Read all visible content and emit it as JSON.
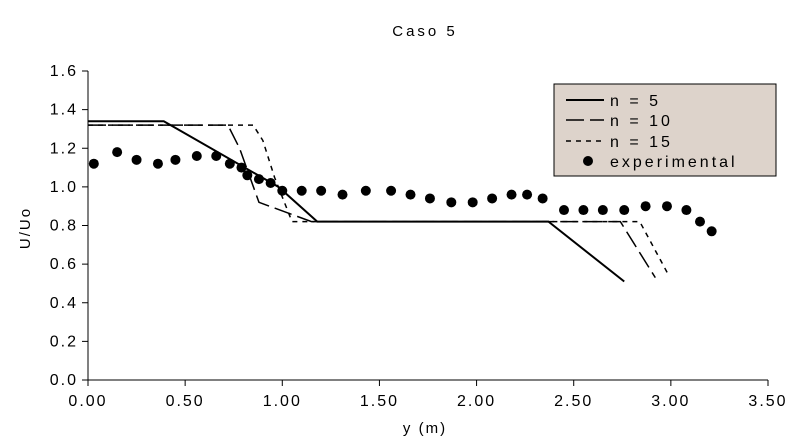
{
  "chart_data": {
    "type": "line",
    "title": "Caso 5",
    "xlabel": "y (m)",
    "ylabel": "U/Uo",
    "xlim": [
      0,
      3.5
    ],
    "ylim": [
      0,
      1.6
    ],
    "xticks": [
      "0.00",
      "0.50",
      "1.00",
      "1.50",
      "2.00",
      "2.50",
      "3.00",
      "3.50"
    ],
    "yticks": [
      "0.0",
      "0.2",
      "0.4",
      "0.6",
      "0.8",
      "1.0",
      "1.2",
      "1.4",
      "1.6"
    ],
    "grid": false,
    "legend_position": "top-right",
    "series": [
      {
        "name": "n = 5",
        "style": "solid",
        "x": [
          0.0,
          0.39,
          0.98,
          1.18,
          2.37,
          2.76
        ],
        "y": [
          1.34,
          1.34,
          1.0,
          0.82,
          0.82,
          0.51
        ]
      },
      {
        "name": "n = 10",
        "style": "long-dash",
        "x": [
          0.0,
          0.72,
          0.78,
          0.88,
          1.15,
          2.74,
          2.92
        ],
        "y": [
          1.32,
          1.32,
          1.2,
          0.92,
          0.82,
          0.82,
          0.53
        ]
      },
      {
        "name": "n = 15",
        "style": "short-dash",
        "x": [
          0.0,
          0.85,
          0.9,
          0.96,
          1.05,
          1.2,
          2.84,
          2.99
        ],
        "y": [
          1.32,
          1.32,
          1.24,
          1.05,
          0.82,
          0.82,
          0.82,
          0.54
        ]
      },
      {
        "name": "experimental",
        "style": "markers",
        "x": [
          0.03,
          0.15,
          0.25,
          0.36,
          0.45,
          0.56,
          0.66,
          0.73,
          0.79,
          0.82,
          0.88,
          0.94,
          1.0,
          1.1,
          1.2,
          1.31,
          1.43,
          1.56,
          1.66,
          1.76,
          1.87,
          1.98,
          2.08,
          2.18,
          2.26,
          2.34,
          2.45,
          2.55,
          2.65,
          2.76,
          2.87,
          2.98,
          3.08,
          3.15,
          3.21
        ],
        "y": [
          1.12,
          1.18,
          1.14,
          1.12,
          1.14,
          1.16,
          1.16,
          1.12,
          1.1,
          1.06,
          1.04,
          1.02,
          0.98,
          0.98,
          0.98,
          0.96,
          0.98,
          0.98,
          0.96,
          0.94,
          0.92,
          0.92,
          0.94,
          0.96,
          0.96,
          0.94,
          0.88,
          0.88,
          0.88,
          0.88,
          0.9,
          0.9,
          0.88,
          0.82,
          0.77
        ]
      }
    ]
  }
}
